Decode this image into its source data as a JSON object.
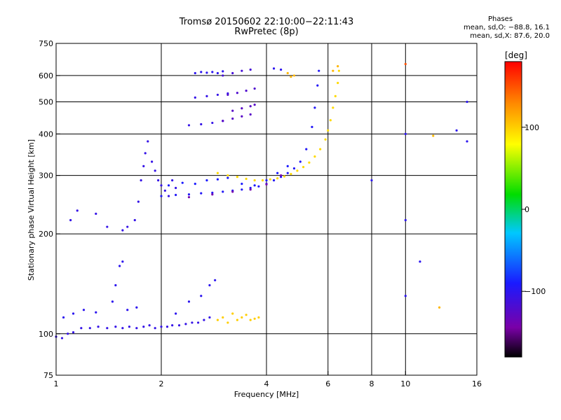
{
  "title_line1": "Tromsø 20150602 22:10:00−22:11:43",
  "title_line2": "RwPretec (8p)",
  "phase_box": {
    "heading": "Phases",
    "line1": "mean, sd,O: −88.8, 16.1",
    "line2": "mean, sd,X:  87.6, 20.0"
  },
  "colorbar": {
    "label": "[deg]",
    "tick_labels": [
      "100",
      "0",
      "−100"
    ],
    "tick_values": [
      100,
      0,
      -100
    ],
    "range": [
      -180,
      180
    ]
  },
  "chart_data": {
    "type": "scatter",
    "xlabel": "Frequency [MHz]",
    "ylabel": "Stationary phase Virtual Height [km]",
    "x_scale": "log",
    "y_scale": "log",
    "xlim": [
      1,
      16
    ],
    "ylim": [
      75,
      750
    ],
    "x_ticks": [
      1,
      2,
      4,
      6,
      8,
      10,
      16
    ],
    "x_tick_labels": [
      "1",
      "2",
      "4",
      "6",
      "8",
      "10",
      "16"
    ],
    "x_grid": [
      2,
      4,
      6,
      8,
      10
    ],
    "y_ticks": [
      75,
      100,
      200,
      300,
      400,
      500,
      600,
      750
    ],
    "y_tick_labels": [
      "75",
      "100",
      "200",
      "300",
      "400",
      "500",
      "600",
      "750"
    ],
    "y_grid": [
      100,
      200,
      300,
      400,
      500,
      600
    ],
    "color_variable": "phase [deg]",
    "series": [
      {
        "phase": -105,
        "points": [
          [
            1.0,
            98
          ],
          [
            1.04,
            97
          ],
          [
            1.08,
            100
          ],
          [
            1.12,
            101
          ],
          [
            1.18,
            104
          ],
          [
            1.25,
            104
          ],
          [
            1.32,
            105
          ],
          [
            1.4,
            104
          ],
          [
            1.48,
            105
          ],
          [
            1.55,
            104
          ],
          [
            1.62,
            105
          ],
          [
            1.7,
            104
          ],
          [
            1.78,
            105
          ],
          [
            1.85,
            106
          ],
          [
            1.92,
            104
          ],
          [
            2.0,
            105
          ],
          [
            2.08,
            105
          ],
          [
            2.15,
            106
          ],
          [
            2.25,
            106
          ],
          [
            2.35,
            107
          ],
          [
            2.45,
            108
          ],
          [
            2.55,
            108
          ],
          [
            2.65,
            110
          ],
          [
            2.75,
            112
          ]
        ]
      },
      {
        "phase": -100,
        "points": [
          [
            1.05,
            112
          ],
          [
            1.12,
            115
          ],
          [
            1.2,
            118
          ],
          [
            1.3,
            116
          ],
          [
            1.45,
            125
          ],
          [
            1.48,
            140
          ],
          [
            1.52,
            160
          ],
          [
            1.55,
            165
          ],
          [
            1.6,
            118
          ],
          [
            1.7,
            120
          ],
          [
            2.2,
            115
          ],
          [
            2.4,
            125
          ],
          [
            2.6,
            130
          ],
          [
            2.75,
            140
          ],
          [
            2.85,
            145
          ]
        ]
      },
      {
        "phase": -105,
        "points": [
          [
            1.1,
            220
          ],
          [
            1.15,
            235
          ],
          [
            1.3,
            230
          ],
          [
            1.4,
            210
          ],
          [
            1.55,
            205
          ],
          [
            1.6,
            210
          ],
          [
            1.68,
            220
          ],
          [
            1.72,
            250
          ],
          [
            1.75,
            290
          ],
          [
            1.78,
            320
          ],
          [
            1.8,
            350
          ],
          [
            1.83,
            380
          ],
          [
            1.88,
            330
          ],
          [
            1.92,
            310
          ],
          [
            1.96,
            290
          ],
          [
            2.0,
            280
          ],
          [
            2.05,
            270
          ],
          [
            2.1,
            260
          ],
          [
            2.15,
            290
          ],
          [
            2.2,
            275
          ]
        ]
      },
      {
        "phase": -95,
        "points": [
          [
            2.0,
            260
          ],
          [
            2.2,
            262
          ],
          [
            2.4,
            263
          ],
          [
            2.6,
            265
          ],
          [
            2.8,
            266
          ],
          [
            3.0,
            268
          ],
          [
            3.2,
            270
          ],
          [
            3.4,
            272
          ],
          [
            3.6,
            275
          ],
          [
            3.8,
            278
          ],
          [
            4.0,
            283
          ],
          [
            4.2,
            290
          ],
          [
            4.4,
            297
          ],
          [
            4.6,
            305
          ],
          [
            4.8,
            315
          ],
          [
            5.0,
            330
          ],
          [
            5.2,
            360
          ],
          [
            5.4,
            420
          ],
          [
            5.5,
            480
          ],
          [
            5.6,
            560
          ],
          [
            5.65,
            620
          ]
        ]
      },
      {
        "phase": -90,
        "points": [
          [
            2.1,
            280
          ],
          [
            2.3,
            285
          ],
          [
            2.5,
            283
          ],
          [
            2.7,
            290
          ],
          [
            2.9,
            292
          ],
          [
            3.1,
            295
          ],
          [
            3.4,
            283
          ],
          [
            3.7,
            280
          ],
          [
            4.0,
            290
          ],
          [
            4.3,
            305
          ],
          [
            4.6,
            320
          ]
        ]
      },
      {
        "phase": 95,
        "points": [
          [
            2.9,
            305
          ],
          [
            3.1,
            300
          ],
          [
            3.3,
            297
          ],
          [
            3.5,
            293
          ],
          [
            3.7,
            290
          ],
          [
            3.9,
            290
          ],
          [
            4.1,
            292
          ],
          [
            4.3,
            294
          ],
          [
            4.5,
            298
          ],
          [
            4.7,
            303
          ],
          [
            4.9,
            310
          ],
          [
            5.1,
            318
          ],
          [
            5.3,
            328
          ],
          [
            5.5,
            342
          ],
          [
            5.7,
            360
          ],
          [
            5.9,
            385
          ],
          [
            6.0,
            410
          ],
          [
            6.1,
            440
          ],
          [
            6.2,
            480
          ],
          [
            6.3,
            520
          ],
          [
            6.4,
            570
          ],
          [
            6.45,
            620
          ]
        ]
      },
      {
        "phase": 100,
        "points": [
          [
            2.9,
            110
          ],
          [
            3.0,
            112
          ],
          [
            3.1,
            108
          ],
          [
            3.2,
            115
          ],
          [
            3.3,
            110
          ],
          [
            3.4,
            112
          ],
          [
            3.5,
            114
          ],
          [
            3.6,
            110
          ],
          [
            3.7,
            111
          ],
          [
            3.8,
            112
          ]
        ]
      },
      {
        "phase": -140,
        "points": [
          [
            2.4,
            258
          ],
          [
            2.8,
            263
          ],
          [
            3.2,
            268
          ],
          [
            3.6,
            272
          ],
          [
            4.0,
            282
          ],
          [
            4.4,
            300
          ]
        ]
      },
      {
        "phase": -100,
        "points": [
          [
            2.5,
            610
          ],
          [
            2.6,
            615
          ],
          [
            2.7,
            612
          ],
          [
            2.8,
            615
          ],
          [
            2.9,
            610
          ],
          [
            3.0,
            618
          ]
        ]
      },
      {
        "phase": -115,
        "points": [
          [
            3.0,
            600
          ],
          [
            3.2,
            610
          ],
          [
            3.4,
            620
          ],
          [
            3.6,
            625
          ]
        ]
      },
      {
        "phase": -105,
        "points": [
          [
            2.5,
            515
          ],
          [
            2.7,
            520
          ],
          [
            2.9,
            525
          ],
          [
            3.1,
            530
          ]
        ]
      },
      {
        "phase": -120,
        "points": [
          [
            3.1,
            525
          ],
          [
            3.3,
            532
          ],
          [
            3.5,
            540
          ],
          [
            3.7,
            548
          ]
        ]
      },
      {
        "phase": -125,
        "points": [
          [
            3.2,
            470
          ],
          [
            3.4,
            478
          ],
          [
            3.6,
            485
          ],
          [
            3.7,
            490
          ]
        ]
      },
      {
        "phase": -105,
        "points": [
          [
            2.4,
            425
          ],
          [
            2.6,
            428
          ],
          [
            2.8,
            432
          ],
          [
            3.0,
            438
          ]
        ]
      },
      {
        "phase": -125,
        "points": [
          [
            3.0,
            438
          ],
          [
            3.2,
            445
          ],
          [
            3.4,
            452
          ],
          [
            3.6,
            458
          ]
        ]
      },
      {
        "phase": -100,
        "points": [
          [
            4.2,
            630
          ],
          [
            4.4,
            625
          ]
        ]
      },
      {
        "phase": 110,
        "points": [
          [
            4.6,
            610
          ],
          [
            4.7,
            595
          ],
          [
            4.8,
            600
          ],
          [
            6.2,
            620
          ],
          [
            6.4,
            640
          ]
        ]
      },
      {
        "phase": 110,
        "points": [
          [
            12.0,
            395
          ],
          [
            12.5,
            120
          ]
        ]
      },
      {
        "phase": -100,
        "points": [
          [
            8.0,
            290
          ],
          [
            10.0,
            400
          ],
          [
            10.0,
            220
          ],
          [
            10.0,
            130
          ],
          [
            11.0,
            165
          ],
          [
            14.0,
            410
          ],
          [
            15.0,
            500
          ],
          [
            15.0,
            380
          ]
        ]
      },
      {
        "phase": 150,
        "points": [
          [
            10.0,
            650
          ]
        ]
      }
    ]
  }
}
